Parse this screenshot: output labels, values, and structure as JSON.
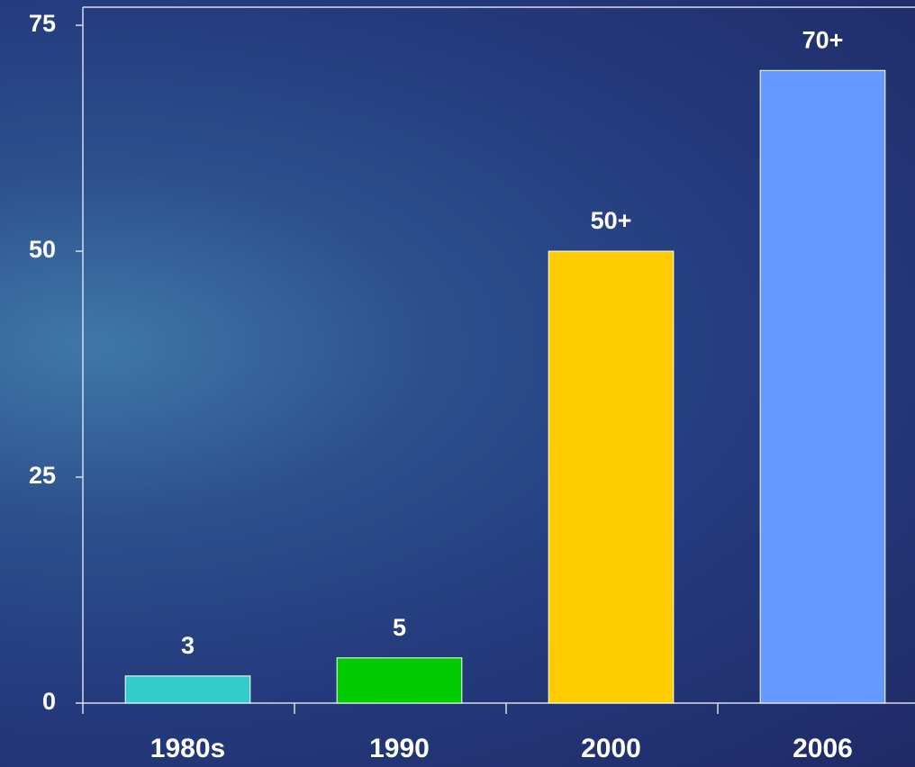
{
  "chart_data": {
    "type": "bar",
    "categories": [
      "1980s",
      "1990",
      "2000",
      "2006"
    ],
    "values": [
      3,
      5,
      50,
      70
    ],
    "value_labels": [
      "3",
      "5",
      "50+",
      "70+"
    ],
    "colors": [
      "#33cccc",
      "#00cc00",
      "#ffcc00",
      "#6699ff"
    ],
    "ylim": [
      0,
      77
    ],
    "yticks": [
      0,
      25,
      50,
      75
    ],
    "grid": false
  }
}
